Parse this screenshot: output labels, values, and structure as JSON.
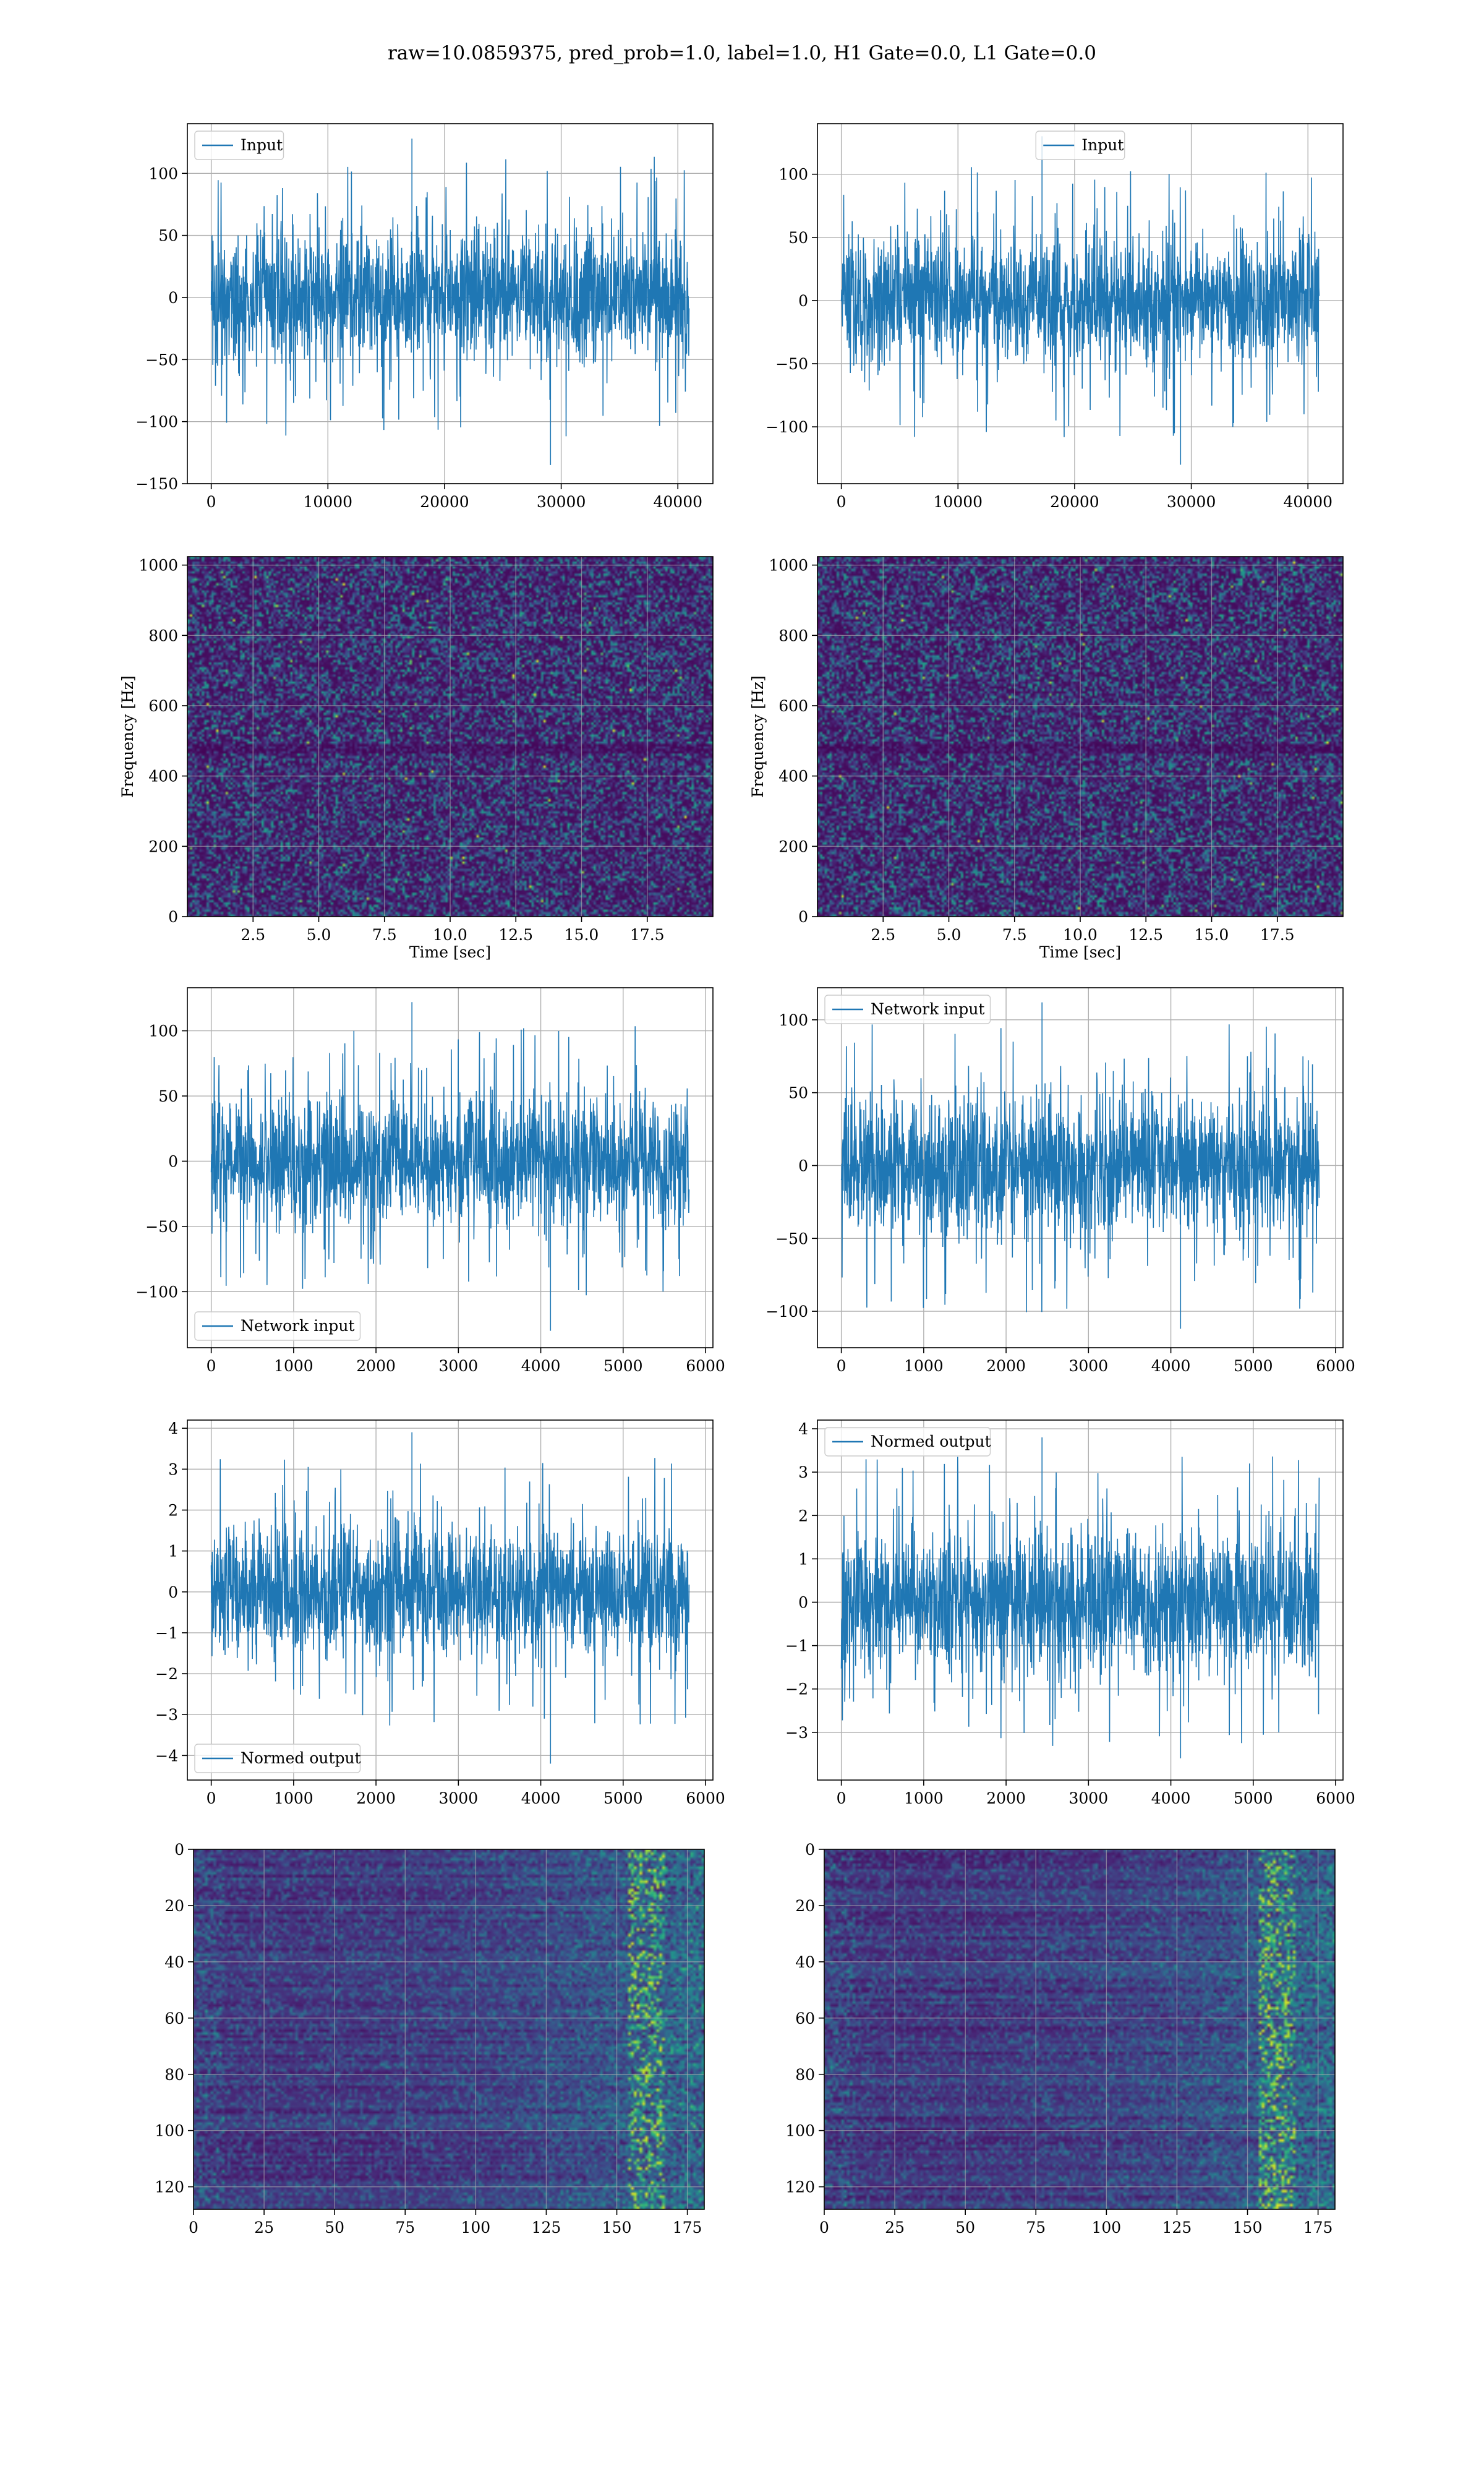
{
  "figure": {
    "suptitle": "raw=10.0859375, pred_prob=1.0, label=1.0, H1 Gate=0.0, L1 Gate=0.0",
    "line_color": "#1f77b4",
    "grid_color": "#b0b0b0"
  },
  "chart_data": [
    {
      "id": "raw-input-h1",
      "type": "line",
      "title": "",
      "xlabel": "",
      "ylabel": "",
      "xlim": [
        -2048,
        43008
      ],
      "ylim": [
        -150,
        140
      ],
      "xticks": [
        0,
        10000,
        20000,
        30000,
        40000
      ],
      "yticks": [
        -150,
        -100,
        -50,
        0,
        50,
        100
      ],
      "x_range": [
        0,
        40960
      ],
      "series": [
        {
          "name": "Input",
          "std": 27,
          "peak_max": 128,
          "peak_min": -135
        }
      ],
      "legend": "top-left",
      "grid": true
    },
    {
      "id": "raw-input-l1",
      "type": "line",
      "title": "",
      "xlabel": "",
      "ylabel": "",
      "xlim": [
        -2048,
        43008
      ],
      "ylim": [
        -145,
        140
      ],
      "xticks": [
        0,
        10000,
        20000,
        30000,
        40000
      ],
      "yticks": [
        -100,
        -50,
        0,
        50,
        100
      ],
      "x_range": [
        0,
        40960
      ],
      "series": [
        {
          "name": "Input",
          "std": 26,
          "peak_max": 130,
          "peak_min": -130
        }
      ],
      "legend": "top-center",
      "grid": true
    },
    {
      "id": "spectrogram-h1",
      "type": "heatmap",
      "title": "",
      "xlabel": "Time [sec]",
      "ylabel": "Frequency [Hz]",
      "xlim": [
        0,
        20
      ],
      "ylim": [
        0,
        1024
      ],
      "xticks": [
        2.5,
        5.0,
        7.5,
        10.0,
        12.5,
        15.0,
        17.5
      ],
      "yticks": [
        0,
        200,
        400,
        600,
        800,
        1000
      ],
      "colormap": "viridis",
      "grid": true
    },
    {
      "id": "spectrogram-l1",
      "type": "heatmap",
      "title": "",
      "xlabel": "Time [sec]",
      "ylabel": "Frequency [Hz]",
      "xlim": [
        0,
        20
      ],
      "ylim": [
        0,
        1024
      ],
      "xticks": [
        2.5,
        5.0,
        7.5,
        10.0,
        12.5,
        15.0,
        17.5
      ],
      "yticks": [
        0,
        200,
        400,
        600,
        800,
        1000
      ],
      "colormap": "viridis",
      "grid": true
    },
    {
      "id": "network-input-h1",
      "type": "line",
      "title": "",
      "xlabel": "",
      "ylabel": "",
      "xlim": [
        -290,
        6090
      ],
      "ylim": [
        -143,
        133
      ],
      "xticks": [
        0,
        1000,
        2000,
        3000,
        4000,
        5000,
        6000
      ],
      "yticks": [
        -100,
        -50,
        0,
        50,
        100
      ],
      "x_range": [
        0,
        5800
      ],
      "series": [
        {
          "name": "Network input",
          "std": 25,
          "peak_max": 122,
          "peak_min": -130
        }
      ],
      "legend": "bottom-left",
      "grid": true
    },
    {
      "id": "network-input-l1",
      "type": "line",
      "title": "",
      "xlabel": "",
      "ylabel": "",
      "xlim": [
        -290,
        6090
      ],
      "ylim": [
        -125,
        122
      ],
      "xticks": [
        0,
        1000,
        2000,
        3000,
        4000,
        5000,
        6000
      ],
      "yticks": [
        -100,
        -50,
        0,
        50,
        100
      ],
      "x_range": [
        0,
        5800
      ],
      "series": [
        {
          "name": "Network input",
          "std": 24,
          "peak_max": 112,
          "peak_min": -112
        }
      ],
      "legend": "top-left",
      "grid": true
    },
    {
      "id": "normed-output-h1",
      "type": "line",
      "title": "",
      "xlabel": "",
      "ylabel": "",
      "xlim": [
        -290,
        6090
      ],
      "ylim": [
        -4.6,
        4.2
      ],
      "xticks": [
        0,
        1000,
        2000,
        3000,
        4000,
        5000,
        6000
      ],
      "yticks": [
        -4,
        -3,
        -2,
        -1,
        0,
        1,
        2,
        3,
        4
      ],
      "x_range": [
        0,
        5800
      ],
      "series": [
        {
          "name": "Normed output",
          "std": 0.8,
          "peak_max": 3.9,
          "peak_min": -4.2
        }
      ],
      "legend": "bottom-left",
      "grid": true
    },
    {
      "id": "normed-output-l1",
      "type": "line",
      "title": "",
      "xlabel": "",
      "ylabel": "",
      "xlim": [
        -290,
        6090
      ],
      "ylim": [
        -4.1,
        4.2
      ],
      "xticks": [
        0,
        1000,
        2000,
        3000,
        4000,
        5000,
        6000
      ],
      "yticks": [
        -3,
        -2,
        -1,
        0,
        1,
        2,
        3,
        4
      ],
      "x_range": [
        0,
        5800
      ],
      "series": [
        {
          "name": "Normed output",
          "std": 0.8,
          "peak_max": 3.8,
          "peak_min": -3.6
        }
      ],
      "legend": "top-left",
      "grid": true
    },
    {
      "id": "qtransform-h1",
      "type": "heatmap",
      "title": "",
      "xlabel": "",
      "ylabel": "",
      "xlim": [
        0,
        181
      ],
      "ylim": [
        128,
        0
      ],
      "xticks": [
        0,
        25,
        50,
        75,
        100,
        125,
        150,
        175
      ],
      "yticks": [
        0,
        20,
        40,
        60,
        80,
        100,
        120
      ],
      "colormap": "viridis",
      "grid": true
    },
    {
      "id": "qtransform-l1",
      "type": "heatmap",
      "title": "",
      "xlabel": "",
      "ylabel": "",
      "xlim": [
        0,
        181
      ],
      "ylim": [
        128,
        0
      ],
      "xticks": [
        0,
        25,
        50,
        75,
        100,
        125,
        150,
        175
      ],
      "yticks": [
        0,
        20,
        40,
        60,
        80,
        100,
        120
      ],
      "colormap": "viridis",
      "grid": true
    }
  ]
}
